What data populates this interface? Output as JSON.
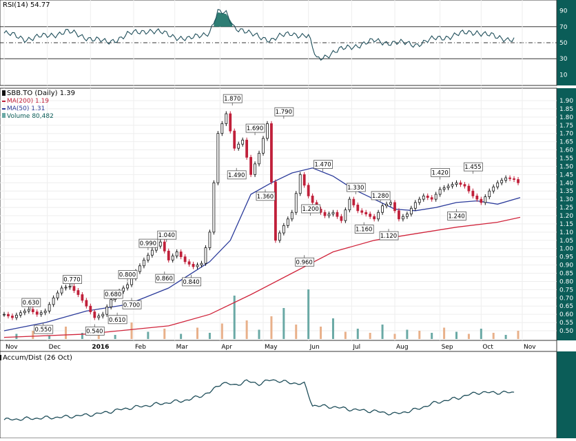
{
  "colors": {
    "axis_bg": "#0b5d58",
    "axis_text": "#ffffff",
    "candle_up": "#111111",
    "candle_down": "#c0203a",
    "ma200": "#d0233a",
    "ma50": "#2a3a9a",
    "volume_up": "#6aa9a5",
    "volume_down": "#e8b08a",
    "rsi_fill": "#2e7d74",
    "grid": "#dddddd",
    "line": "#1f4e5a"
  },
  "price_panel": {
    "symbol_legend": "SBB.TO (Daily) 1.39",
    "ma200_legend": "MA(200) 1.19",
    "ma50_legend": "MA(50) 1.31",
    "volume_legend": "Volume 80,482",
    "y_ticks": [
      "1.90",
      "1.85",
      "1.80",
      "1.75",
      "1.70",
      "1.65",
      "1.60",
      "1.55",
      "1.50",
      "1.45",
      "1.40",
      "1.35",
      "1.30",
      "1.25",
      "1.20",
      "1.15",
      "1.10",
      "1.05",
      "1.00",
      "0.95",
      "0.90",
      "0.85",
      "0.80",
      "0.75",
      "0.70",
      "0.65",
      "0.60",
      "0.55",
      "0.50"
    ]
  },
  "rsi_panel": {
    "legend": "RSI(14) 54.77",
    "y_ticks": [
      "90",
      "70",
      "50",
      "30",
      "10"
    ]
  },
  "ad_panel": {
    "legend": "Accum/Dist (26 Oct)"
  },
  "x_axis": {
    "labels": [
      "Nov",
      "Dec",
      "2016",
      "Feb",
      "Mar",
      "Apr",
      "May",
      "Jun",
      "Jul",
      "Aug",
      "Sep",
      "Oct",
      "Nov"
    ]
  },
  "chart_data": {
    "type": "line",
    "x_unit": "trading days from 2 Nov 2015",
    "ylim_price": [
      0.475,
      1.925
    ],
    "ylim_rsi": [
      0,
      100
    ],
    "price_series": {
      "name": "SBB.TO",
      "x": [
        0,
        4,
        8,
        12,
        16,
        20,
        24,
        28,
        32,
        36,
        40,
        44,
        48,
        52,
        56,
        60,
        64,
        68,
        72,
        76,
        80,
        84,
        88,
        92,
        96,
        100,
        104,
        108,
        112,
        116,
        120,
        124,
        128,
        132,
        136,
        140,
        144,
        148,
        152,
        156,
        160,
        164,
        168,
        172,
        176,
        180,
        184,
        188,
        192,
        196,
        200,
        204,
        208,
        212,
        216,
        220,
        224,
        228,
        232,
        236,
        240,
        244,
        248,
        251
      ],
      "y": [
        0.6,
        0.58,
        0.61,
        0.63,
        0.6,
        0.62,
        0.7,
        0.76,
        0.77,
        0.72,
        0.65,
        0.58,
        0.6,
        0.69,
        0.74,
        0.78,
        0.86,
        0.93,
        0.99,
        1.04,
        0.93,
        0.98,
        0.92,
        0.89,
        0.91,
        1.1,
        1.7,
        1.82,
        1.61,
        1.66,
        1.45,
        1.58,
        1.76,
        1.05,
        1.14,
        1.22,
        1.45,
        1.32,
        1.24,
        1.2,
        1.22,
        1.17,
        1.3,
        1.23,
        1.21,
        1.18,
        1.26,
        1.28,
        1.18,
        1.21,
        1.28,
        1.32,
        1.3,
        1.36,
        1.38,
        1.4,
        1.38,
        1.32,
        1.28,
        1.35,
        1.4,
        1.43,
        1.42,
        1.39
      ]
    },
    "ma200": {
      "name": "MA(200)",
      "x": [
        0,
        40,
        80,
        100,
        120,
        140,
        160,
        180,
        200,
        220,
        240,
        251
      ],
      "y": [
        0.46,
        0.48,
        0.53,
        0.6,
        0.72,
        0.85,
        0.98,
        1.05,
        1.09,
        1.13,
        1.16,
        1.19
      ]
    },
    "ma50": {
      "name": "MA(50)",
      "x": [
        0,
        20,
        40,
        60,
        80,
        100,
        110,
        120,
        130,
        140,
        150,
        160,
        170,
        180,
        190,
        200,
        210,
        220,
        230,
        240,
        251
      ],
      "y": [
        0.5,
        0.55,
        0.62,
        0.66,
        0.76,
        0.92,
        1.05,
        1.33,
        1.4,
        1.46,
        1.49,
        1.44,
        1.36,
        1.3,
        1.24,
        1.23,
        1.25,
        1.28,
        1.29,
        1.27,
        1.31
      ]
    },
    "volume": {
      "x": [
        6,
        14,
        22,
        30,
        38,
        46,
        54,
        62,
        70,
        78,
        86,
        94,
        100,
        106,
        112,
        118,
        124,
        130,
        136,
        142,
        148,
        154,
        160,
        166,
        172,
        178,
        184,
        190,
        196,
        202,
        208,
        214,
        220,
        226,
        232,
        238,
        244,
        250
      ],
      "values": [
        5,
        8,
        3,
        12,
        6,
        9,
        4,
        16,
        7,
        10,
        5,
        11,
        6,
        15,
        42,
        18,
        9,
        22,
        30,
        14,
        48,
        12,
        20,
        7,
        10,
        6,
        14,
        5,
        9,
        8,
        6,
        11,
        7,
        5,
        10,
        6,
        4,
        8
      ]
    },
    "rsi": {
      "name": "RSI(14)",
      "x": [
        0,
        10,
        20,
        30,
        40,
        50,
        60,
        70,
        80,
        90,
        100,
        104,
        108,
        112,
        116,
        120,
        130,
        140,
        148,
        152,
        160,
        170,
        180,
        190,
        200,
        210,
        220,
        230,
        240,
        248
      ],
      "y": [
        62,
        55,
        58,
        64,
        57,
        50,
        60,
        66,
        60,
        54,
        64,
        88,
        86,
        70,
        66,
        60,
        54,
        62,
        58,
        29,
        38,
        46,
        52,
        50,
        48,
        55,
        60,
        64,
        56,
        55
      ]
    },
    "accum_dist": {
      "name": "Accum/Dist",
      "x": [
        0,
        15,
        30,
        45,
        60,
        75,
        90,
        100,
        106,
        112,
        118,
        124,
        130,
        138,
        146,
        150,
        160,
        170,
        180,
        190,
        200,
        210,
        220,
        230,
        240,
        248
      ],
      "y": [
        20,
        22,
        24,
        28,
        36,
        42,
        48,
        58,
        72,
        68,
        74,
        70,
        76,
        72,
        70,
        40,
        38,
        34,
        32,
        28,
        34,
        44,
        50,
        58,
        58,
        58
      ]
    },
    "annotations": [
      {
        "label": "0.630",
        "x": 13,
        "y": 0.63
      },
      {
        "label": "0.550",
        "x": 19,
        "y": 0.55
      },
      {
        "label": "0.770",
        "x": 33,
        "y": 0.77
      },
      {
        "label": "0.540",
        "x": 44,
        "y": 0.54
      },
      {
        "label": "0.680",
        "x": 53,
        "y": 0.68
      },
      {
        "label": "0.610",
        "x": 55,
        "y": 0.61
      },
      {
        "label": "0.800",
        "x": 60,
        "y": 0.8
      },
      {
        "label": "0.700",
        "x": 62,
        "y": 0.7
      },
      {
        "label": "0.990",
        "x": 70,
        "y": 0.99
      },
      {
        "label": "1.040",
        "x": 79,
        "y": 1.04
      },
      {
        "label": "0.860",
        "x": 78,
        "y": 0.86
      },
      {
        "label": "0.840",
        "x": 91,
        "y": 0.84
      },
      {
        "label": "1.870",
        "x": 111,
        "y": 1.87
      },
      {
        "label": "1.490",
        "x": 113,
        "y": 1.49
      },
      {
        "label": "1.690",
        "x": 122,
        "y": 1.69
      },
      {
        "label": "1.360",
        "x": 127,
        "y": 1.36
      },
      {
        "label": "1.790",
        "x": 136,
        "y": 1.79
      },
      {
        "label": "0.960",
        "x": 146,
        "y": 0.96
      },
      {
        "label": "1.200",
        "x": 149,
        "y": 1.2
      },
      {
        "label": "1.470",
        "x": 155,
        "y": 1.47
      },
      {
        "label": "1.330",
        "x": 171,
        "y": 1.33
      },
      {
        "label": "1.160",
        "x": 175,
        "y": 1.16
      },
      {
        "label": "1.280",
        "x": 183,
        "y": 1.28
      },
      {
        "label": "1.120",
        "x": 187,
        "y": 1.12
      },
      {
        "label": "1.420",
        "x": 212,
        "y": 1.42
      },
      {
        "label": "1.240",
        "x": 220,
        "y": 1.24
      },
      {
        "label": "1.455",
        "x": 228,
        "y": 1.455
      }
    ]
  }
}
